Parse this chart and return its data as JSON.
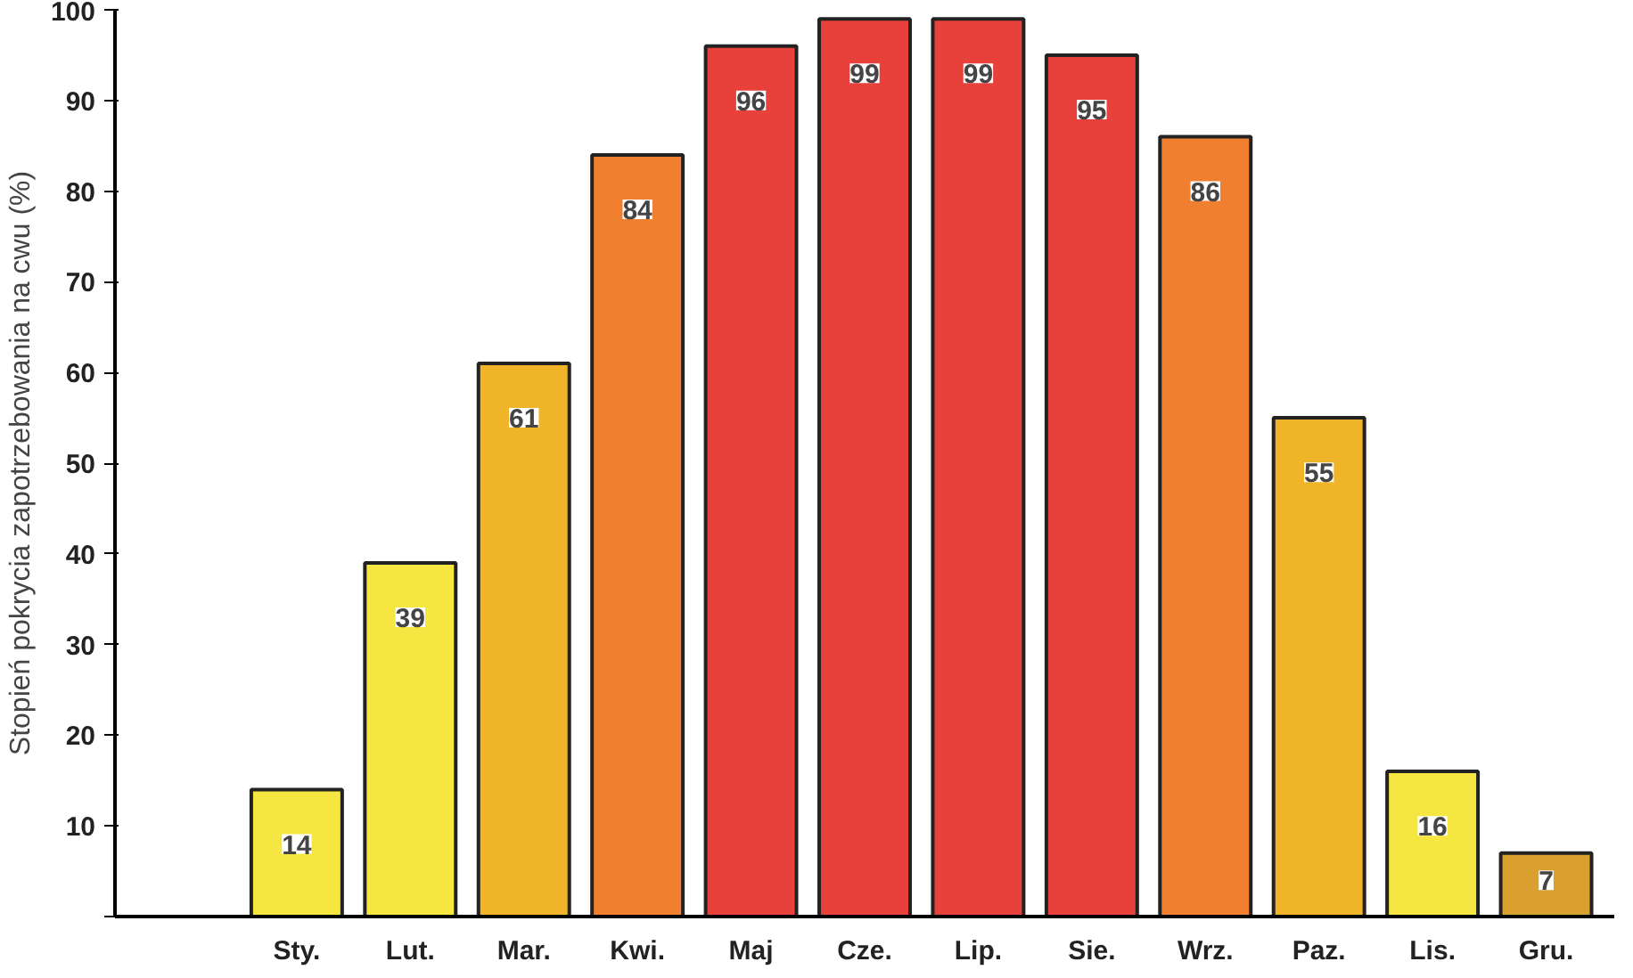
{
  "chart_data": {
    "type": "bar",
    "ylabel": "Stopień pokrycia zapotrzebowania na cwu (%)",
    "categories": [
      "Sty.",
      "Lut.",
      "Mar.",
      "Kwi.",
      "Maj",
      "Cze.",
      "Lip.",
      "Sie.",
      "Wrz.",
      "Paz.",
      "Lis.",
      "Gru."
    ],
    "values": [
      14,
      39,
      61,
      84,
      96,
      99,
      99,
      95,
      86,
      55,
      16,
      7
    ],
    "colors": [
      "#f5e642",
      "#f5e642",
      "#f0b428",
      "#f08030",
      "#e8403a",
      "#e8403a",
      "#e8403a",
      "#e8403a",
      "#f08030",
      "#f0b428",
      "#f5e642",
      "#d9a030"
    ],
    "ylim": [
      0,
      100
    ],
    "yticks": [
      {
        "value": 0,
        "label": null
      },
      10,
      20,
      30,
      40,
      50,
      60,
      70,
      80,
      90,
      100
    ],
    "data_labels": true,
    "grid": false
  }
}
